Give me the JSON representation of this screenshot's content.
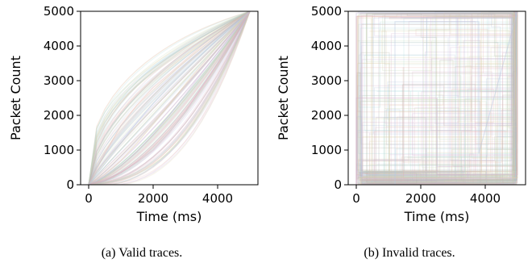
{
  "chart_data": [
    {
      "type": "line",
      "subtitle": "(a) Valid traces.",
      "xlabel": "Time (ms)",
      "ylabel": "Packet Count",
      "xlim": [
        -250,
        5250
      ],
      "ylim": [
        0,
        5000
      ],
      "xticks": [
        0,
        2000,
        4000
      ],
      "yticks": [
        0,
        1000,
        2000,
        3000,
        4000,
        5000
      ],
      "grid": false,
      "legend": "none",
      "trace_pattern": "monotonic cumulative curves from (0, 0) to (5000, 5000)",
      "series": [
        {
          "x": [
            0,
            500,
            1000,
            1500,
            2000,
            2500,
            3000,
            3500,
            4000,
            4500,
            5000
          ],
          "y": [
            0,
            900,
            1700,
            2300,
            2800,
            3200,
            3600,
            4000,
            4350,
            4700,
            5000
          ]
        },
        {
          "x": [
            0,
            500,
            1000,
            1500,
            2000,
            2500,
            3000,
            3500,
            4000,
            4500,
            5000
          ],
          "y": [
            0,
            300,
            700,
            1200,
            1750,
            2300,
            2900,
            3450,
            4000,
            4500,
            5000
          ]
        },
        {
          "x": [
            0,
            500,
            1000,
            1500,
            2000,
            2500,
            3000,
            3500,
            4000,
            4500,
            5000
          ],
          "y": [
            0,
            150,
            350,
            650,
            1000,
            1500,
            2100,
            2800,
            3500,
            4250,
            5000
          ]
        },
        {
          "x": [
            0,
            500,
            1000,
            1500,
            2000,
            2500,
            3000,
            3500,
            4000,
            4500,
            5000
          ],
          "y": [
            0,
            600,
            1200,
            1800,
            2350,
            2850,
            3300,
            3750,
            4200,
            4600,
            5000
          ]
        },
        {
          "x": [
            0,
            500,
            1000,
            1500,
            2000,
            2500,
            3000,
            3500,
            4000,
            4500,
            5000
          ],
          "y": [
            0,
            250,
            550,
            950,
            1450,
            2000,
            2600,
            3200,
            3800,
            4400,
            5000
          ]
        }
      ]
    },
    {
      "type": "line",
      "subtitle": "(b) Invalid traces.",
      "xlabel": "Time (ms)",
      "ylabel": "Packet Count",
      "xlim": [
        -250,
        5250
      ],
      "ylim": [
        0,
        5000
      ],
      "xticks": [
        0,
        2000,
        4000
      ],
      "yticks": [
        0,
        1000,
        2000,
        3000,
        4000,
        5000
      ],
      "grid": false,
      "legend": "none",
      "trace_pattern": "rectilinear step paths covering the whole 0–5000 × 0–5000 area",
      "series": [
        {
          "x": [
            0,
            0,
            4900,
            4900,
            5000
          ],
          "y": [
            0,
            4850,
            4850,
            5000,
            5000
          ]
        },
        {
          "x": [
            0,
            150,
            150,
            5000,
            5000
          ],
          "y": [
            0,
            0,
            200,
            200,
            5000
          ]
        },
        {
          "x": [
            0,
            0,
            2500,
            2500,
            5000,
            5000
          ],
          "y": [
            0,
            2500,
            2500,
            300,
            300,
            5000
          ]
        },
        {
          "x": [
            0,
            1200,
            1200,
            3800,
            3800,
            5000
          ],
          "y": [
            0,
            0,
            4700,
            4700,
            900,
            5000
          ]
        },
        {
          "x": [
            0,
            0,
            4800,
            4800
          ],
          "y": [
            0,
            4950,
            4950,
            100
          ]
        }
      ]
    }
  ]
}
